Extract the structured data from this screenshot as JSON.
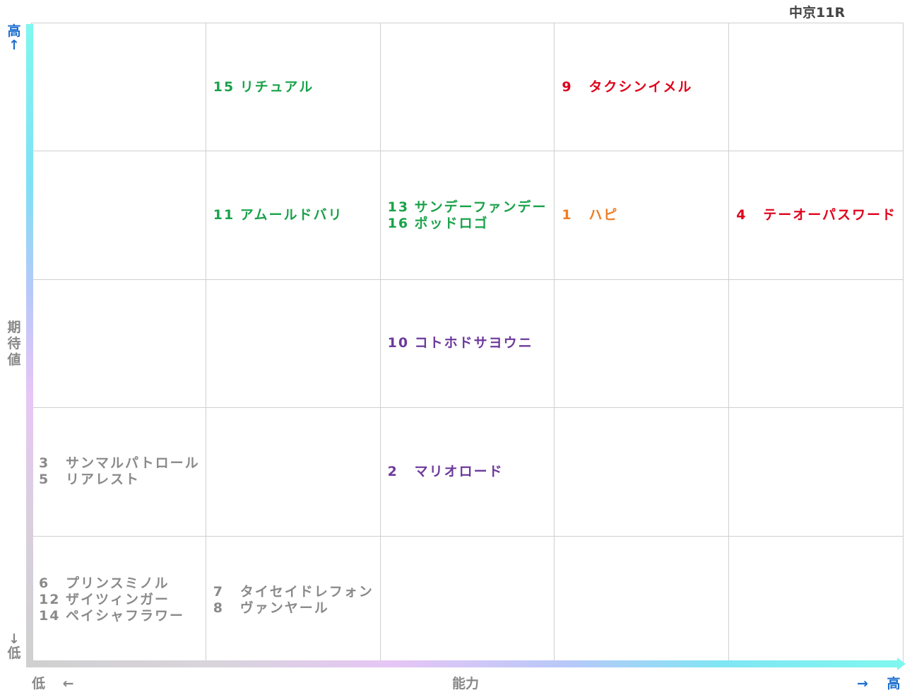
{
  "title": "中京11R",
  "axes": {
    "y_high": "高",
    "y_high_arrow": "↑",
    "y_label": "期待値",
    "y_low_arrow": "↓",
    "y_low": "低",
    "x_low": "低",
    "x_low_arrow": "←",
    "x_label": "能力",
    "x_high_arrow": "→",
    "x_high": "高"
  },
  "colors": {
    "green": "#1aa24a",
    "red": "#e0001b",
    "orange": "#ef7d22",
    "purple": "#6d3a9c",
    "gray": "#8a8a8a",
    "axis_blue": "#1e6fcf"
  },
  "chart_data": {
    "type": "table",
    "columns": 5,
    "rows": 5,
    "x_axis": "能力",
    "y_axis": "期待値",
    "cells": [
      {
        "row": 0,
        "col": 1,
        "color": "green",
        "entries": [
          {
            "num": "15",
            "name": "リチュアル"
          }
        ]
      },
      {
        "row": 0,
        "col": 3,
        "color": "red",
        "entries": [
          {
            "num": "9",
            "name": "タクシンイメル"
          }
        ]
      },
      {
        "row": 1,
        "col": 1,
        "color": "green",
        "entries": [
          {
            "num": "11",
            "name": "アムールドバリ"
          }
        ]
      },
      {
        "row": 1,
        "col": 2,
        "color": "green",
        "entries": [
          {
            "num": "13",
            "name": "サンデーファンデー"
          },
          {
            "num": "16",
            "name": "ポッドロゴ"
          }
        ]
      },
      {
        "row": 1,
        "col": 3,
        "color": "orange",
        "entries": [
          {
            "num": "1",
            "name": "ハピ"
          }
        ]
      },
      {
        "row": 1,
        "col": 4,
        "color": "red",
        "entries": [
          {
            "num": "4",
            "name": "テーオーパスワード"
          }
        ]
      },
      {
        "row": 2,
        "col": 2,
        "color": "purple",
        "entries": [
          {
            "num": "10",
            "name": "コトホドサヨウニ"
          }
        ]
      },
      {
        "row": 3,
        "col": 0,
        "color": "gray",
        "entries": [
          {
            "num": "3",
            "name": "サンマルパトロール"
          },
          {
            "num": "5",
            "name": "リアレスト"
          }
        ]
      },
      {
        "row": 3,
        "col": 2,
        "color": "purple",
        "entries": [
          {
            "num": "2",
            "name": "マリオロード"
          }
        ]
      },
      {
        "row": 4,
        "col": 0,
        "color": "gray",
        "entries": [
          {
            "num": "6",
            "name": "プリンスミノル"
          },
          {
            "num": "12",
            "name": "ザイツィンガー"
          },
          {
            "num": "14",
            "name": "ペイシャフラワー"
          }
        ]
      },
      {
        "row": 4,
        "col": 1,
        "color": "gray",
        "entries": [
          {
            "num": "7",
            "name": "タイセイドレフォン"
          },
          {
            "num": "8",
            "name": "ヴァンヤール"
          }
        ]
      }
    ]
  }
}
